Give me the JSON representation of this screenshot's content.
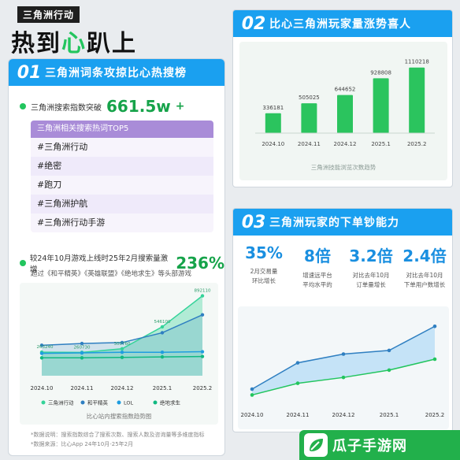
{
  "brand": {
    "tag": "三角洲行动",
    "title_pre": "热到",
    "title_accent": "心",
    "title_post": "趴上"
  },
  "panel1": {
    "num": "01",
    "title": "三角洲词条攻掠比心热搜榜",
    "search_label": "三角洲搜索指数突破",
    "search_value": "661.5w",
    "search_sup": "+",
    "hot_title": "三角洲相关搜索热词TOP5",
    "hot_words": [
      "#三角洲行动",
      "#绝密",
      "#跑刀",
      "#三角洲护航",
      "#三角洲行动手游"
    ],
    "growth_label": "较24年10月游戏上线时25年2月搜索量激增",
    "growth_value": "236%",
    "growth_sub": "超过《和平精英》《英雄联盟》《绝地求生》等头部游戏",
    "chart_caption": "比心站内搜索指数趋势图",
    "note1": "*数据说明：搜索指数综合了搜索次数、搜索人数及咨询量等多维度指标",
    "note2": "*数据来源：比心App 24年10月-25年2月"
  },
  "panel2": {
    "num": "02",
    "title": "比心三角洲玩家量涨势喜人",
    "chart_caption": "三角洲技能浏览次数趋势"
  },
  "panel3": {
    "num": "03",
    "title": "三角洲玩家的下单钞能力",
    "stats": [
      {
        "value": "35%",
        "desc1": "2月交易量",
        "desc2": "环比增长"
      },
      {
        "value": "8倍",
        "desc1": "增速远平台",
        "desc2": "平均水平的"
      },
      {
        "value": "3.2倍",
        "desc1": "对比去年10月",
        "desc2": "订单量增长"
      },
      {
        "value": "2.4倍",
        "desc1": "对比去年10月",
        "desc2": "下单用户数增长"
      }
    ]
  },
  "logo": {
    "text": "瓜子手游网"
  },
  "colors": {
    "blue": "#1aa0f0",
    "green": "#22c55e",
    "purple": "#a98cd8",
    "darkblue": "#2f7fc1",
    "lightblue": "#9fd3f5"
  },
  "chart_data": [
    {
      "type": "area",
      "categories": [
        "2024.10",
        "2024.11",
        "2024.12",
        "2025.1",
        "2025.2"
      ],
      "series": [
        {
          "name": "三角洲行动",
          "values": [
            263240,
            260730,
            300760,
            546100,
            892110
          ],
          "color": "#34d399"
        },
        {
          "name": "和平精英",
          "values": [
            340000,
            360000,
            370000,
            480000,
            680000
          ],
          "color": "#2f7fc1"
        },
        {
          "name": "LOL",
          "values": [
            250000,
            255000,
            262000,
            262000,
            268000
          ],
          "color": "#1f9de0"
        },
        {
          "name": "绝地求生",
          "values": [
            200000,
            200000,
            205000,
            210000,
            215000
          ],
          "color": "#10b981"
        }
      ],
      "data_labels": [
        "263240",
        "260730",
        "300760",
        "546100",
        "892110"
      ],
      "title": "比心站内搜索指数趋势图",
      "ylim": [
        0,
        950000
      ],
      "legend": "bottom"
    },
    {
      "type": "bar",
      "categories": [
        "2024.10",
        "2024.11",
        "2024.12",
        "2025.1",
        "2025.2"
      ],
      "values": [
        336181,
        505025,
        644652,
        928808,
        1110218
      ],
      "title": "三角洲技能浏览次数趋势",
      "ylim": [
        0,
        1200000
      ]
    },
    {
      "type": "area",
      "categories": [
        "2024.10",
        "2024.11",
        "2024.12",
        "2025.1",
        "2025.2"
      ],
      "series": [
        {
          "values": [
            0.14,
            0.5,
            0.62,
            0.67,
            1.0
          ],
          "color": "#2f7fc1"
        },
        {
          "values": [
            0.06,
            0.22,
            0.3,
            0.4,
            0.55
          ],
          "color": "#22c55e"
        }
      ],
      "ylim": [
        0,
        1.1
      ]
    }
  ]
}
